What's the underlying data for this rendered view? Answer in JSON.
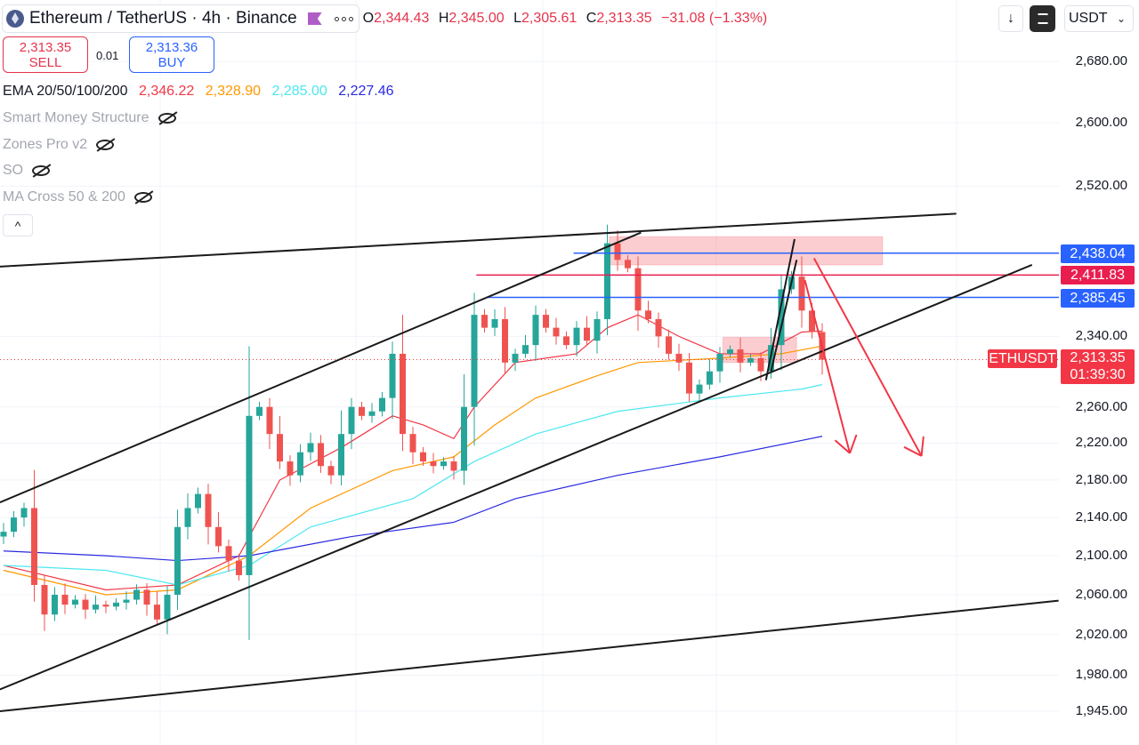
{
  "header": {
    "symbol": "Ethereum / TetherUS · 4h · Binance",
    "more_icon": "ellipsis-icon",
    "ohlc": {
      "o_label": "O",
      "o": "2,344.43",
      "h_label": "H",
      "h": "2,345.00",
      "l_label": "L",
      "l": "2,305.61",
      "c_label": "C",
      "c": "2,313.35",
      "change": "−31.08 (−1.33%)"
    }
  },
  "trade": {
    "sell_price": "2,313.35",
    "sell_label": "SELL",
    "spread": "0.01",
    "buy_price": "2,313.36",
    "buy_label": "BUY"
  },
  "indicators": {
    "ema_label": "EMA 20/50/100/200",
    "ema20": "2,346.22",
    "ema50": "2,328.90",
    "ema100": "2,285.00",
    "ema200": "2,227.46",
    "hidden": [
      "Smart Money Structure",
      "Zones Pro v2",
      "SO",
      "MA Cross 50 & 200"
    ],
    "collapse": "^"
  },
  "toolbar": {
    "currency": "USDT",
    "currency_arrow": "⌄",
    "download_icon": "↓"
  },
  "colors": {
    "up": "#26a69a",
    "down": "#ef5350",
    "ema20": "#f23645",
    "ema50": "#ff9800",
    "ema100": "#4ce8f0",
    "ema200": "#2a2ae0"
  },
  "chart_data": {
    "type": "candlestick",
    "title": "Ethereum / TetherUS · 4h · Binance",
    "scale": "log",
    "ylim": [
      1945,
      2680
    ],
    "y_ticks": [
      "2,680.00",
      "2,600.00",
      "2,520.00",
      "2,340.00",
      "2,260.00",
      "2,220.00",
      "2,180.00",
      "2,140.00",
      "2,100.00",
      "2,060.00",
      "2,020.00",
      "1,980.00",
      "1,945.00"
    ],
    "y_tick_values": [
      2680,
      2600,
      2520,
      2340,
      2260,
      2220,
      2180,
      2140,
      2100,
      2060,
      2020,
      1980,
      1945
    ],
    "closes": [
      2125,
      2140,
      2150,
      2070,
      2040,
      2060,
      2050,
      2055,
      2045,
      2050,
      2048,
      2052,
      2055,
      2065,
      2050,
      2035,
      2060,
      2130,
      2150,
      2165,
      2130,
      2110,
      2095,
      2080,
      2250,
      2260,
      2230,
      2200,
      2185,
      2210,
      2220,
      2195,
      2185,
      2230,
      2260,
      2250,
      2255,
      2270,
      2320,
      2230,
      2210,
      2200,
      2195,
      2200,
      2190,
      2260,
      2365,
      2350,
      2360,
      2310,
      2320,
      2330,
      2365,
      2350,
      2340,
      2330,
      2350,
      2335,
      2360,
      2450,
      2430,
      2420,
      2370,
      2360,
      2340,
      2320,
      2310,
      2275,
      2285,
      2300,
      2320,
      2325,
      2310,
      2315,
      2300,
      2330,
      2395,
      2410,
      2370,
      2345,
      2313.35
    ],
    "series": [
      {
        "name": "EMA 20",
        "color": "#f23645",
        "points": [
          [
            0,
            2090
          ],
          [
            10,
            2065
          ],
          [
            17,
            2070
          ],
          [
            23,
            2100
          ],
          [
            27,
            2180
          ],
          [
            33,
            2215
          ],
          [
            38,
            2250
          ],
          [
            41,
            2240
          ],
          [
            44,
            2225
          ],
          [
            46,
            2260
          ],
          [
            50,
            2310
          ],
          [
            56,
            2320
          ],
          [
            59,
            2350
          ],
          [
            62,
            2365
          ],
          [
            66,
            2340
          ],
          [
            70,
            2320
          ],
          [
            74,
            2320
          ],
          [
            78,
            2345
          ],
          [
            80,
            2346.22
          ]
        ]
      },
      {
        "name": "EMA 50",
        "color": "#ff9800",
        "points": [
          [
            0,
            2085
          ],
          [
            10,
            2060
          ],
          [
            17,
            2065
          ],
          [
            24,
            2100
          ],
          [
            30,
            2150
          ],
          [
            38,
            2190
          ],
          [
            44,
            2205
          ],
          [
            48,
            2240
          ],
          [
            52,
            2270
          ],
          [
            58,
            2295
          ],
          [
            62,
            2310
          ],
          [
            70,
            2315
          ],
          [
            76,
            2320
          ],
          [
            80,
            2328.9
          ]
        ]
      },
      {
        "name": "EMA 100",
        "color": "#4ce8f0",
        "points": [
          [
            0,
            2090
          ],
          [
            10,
            2085
          ],
          [
            17,
            2070
          ],
          [
            24,
            2090
          ],
          [
            30,
            2130
          ],
          [
            40,
            2160
          ],
          [
            46,
            2200
          ],
          [
            52,
            2230
          ],
          [
            60,
            2255
          ],
          [
            70,
            2270
          ],
          [
            78,
            2280
          ],
          [
            80,
            2285
          ]
        ]
      },
      {
        "name": "EMA 200",
        "color": "#2a2ae0",
        "points": [
          [
            0,
            2105
          ],
          [
            10,
            2100
          ],
          [
            17,
            2095
          ],
          [
            24,
            2100
          ],
          [
            34,
            2120
          ],
          [
            44,
            2135
          ],
          [
            50,
            2160
          ],
          [
            60,
            2185
          ],
          [
            70,
            2205
          ],
          [
            80,
            2227.46
          ]
        ]
      }
    ],
    "price_lines": [
      {
        "label": "2,438.04",
        "price": 2438.04,
        "from": 55.7,
        "color": "#2962ff"
      },
      {
        "label": "2,411.83",
        "price": 2411.83,
        "from": 46.2,
        "color": "#e91e4f"
      },
      {
        "label": "2,385.45",
        "price": 2385.45,
        "from": 47.3,
        "color": "#2962ff"
      }
    ],
    "last_price": {
      "symbol": "ETHUSDT",
      "price": 2313.35,
      "label": "2,313.35",
      "countdown": "01:39:30",
      "color": "#f23645"
    },
    "trendlines": [
      [
        -0.35,
        2422,
        93.1,
        2486
      ],
      [
        -0.35,
        1966,
        100.5,
        2424
      ],
      [
        -0.35,
        2156,
        62.3,
        2463
      ],
      [
        -0.35,
        1945,
        103.1,
        2054
      ],
      [
        74.5,
        2290,
        77.3,
        2455
      ],
      [
        75,
        2300,
        77.5,
        2430
      ]
    ],
    "zones": [
      [
        59.2,
        2458,
        85.9,
        2424
      ],
      [
        70.3,
        2339,
        77.5,
        2310
      ]
    ],
    "arrows": [
      [
        78.3,
        2406,
        82.7,
        2209
      ],
      [
        79.2,
        2432,
        89.7,
        2206
      ]
    ]
  }
}
